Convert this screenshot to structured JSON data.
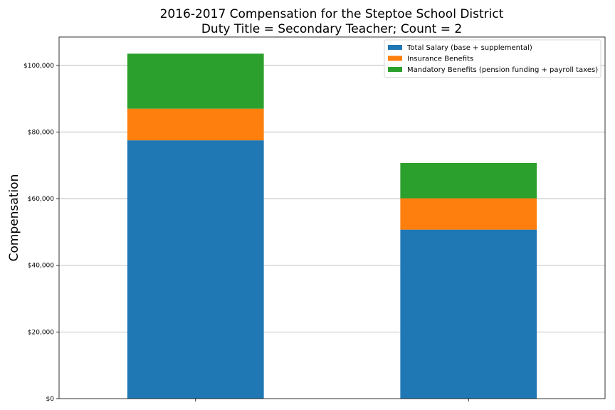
{
  "chart_data": {
    "type": "bar",
    "stacked": true,
    "title_line1": "2016-2017 Compensation for the Steptoe School District",
    "title_line2": "Duty Title = Secondary Teacher; Count = 2",
    "xlabel": "",
    "ylabel": "Compensation",
    "ylim": [
      0,
      108500
    ],
    "yticks": [
      0,
      20000,
      40000,
      60000,
      80000,
      100000
    ],
    "ytick_labels": [
      "$0",
      "$20,000",
      "$40,000",
      "$60,000",
      "$80,000",
      "$100,000"
    ],
    "grid": true,
    "legend_position": "top-right",
    "categories": [
      "",
      ""
    ],
    "series": [
      {
        "name": "Total Salary (base + supplemental)",
        "color": "#1f77b4",
        "values": [
          77500,
          50700
        ]
      },
      {
        "name": "Insurance Benefits",
        "color": "#ff7f0e",
        "values": [
          9500,
          9400
        ]
      },
      {
        "name": "Mandatory Benefits (pension funding + payroll taxes)",
        "color": "#2ca02c",
        "values": [
          16500,
          10600
        ]
      }
    ]
  }
}
